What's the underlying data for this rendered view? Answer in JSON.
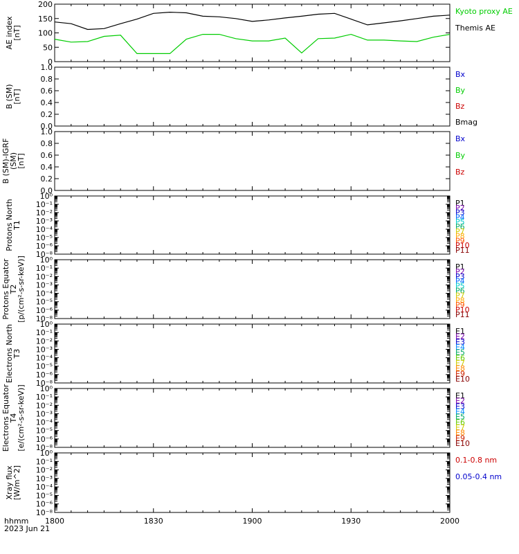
{
  "colors": {
    "black": "#000000",
    "green": "#00cc00",
    "blue": "#0000cc",
    "red": "#cc0000"
  },
  "footer": {
    "hhmm": "hhmm",
    "date": "2023 Jun 21"
  },
  "x_axis": {
    "ticks": [
      "1800",
      "1830",
      "1900",
      "1930",
      "2000"
    ]
  },
  "chart_data": [
    {
      "type": "line",
      "ylabel": "AE index [nT]",
      "ylim": [
        0,
        200
      ],
      "yticks": [
        "0",
        "50",
        "100",
        "150",
        "200"
      ],
      "legend": [
        {
          "name": "Kyoto proxy AE",
          "color": "#00cc00"
        },
        {
          "name": "Themis AE",
          "color": "#000000"
        }
      ],
      "series": [
        {
          "name": "Themis AE",
          "color": "#000000",
          "x": [
            0,
            5,
            10,
            15,
            20,
            25,
            30,
            35,
            40,
            45,
            50,
            55,
            60,
            65,
            70,
            75,
            80,
            85,
            90,
            95,
            100,
            105,
            110,
            115,
            120
          ],
          "y": [
            138,
            132,
            112,
            115,
            132,
            148,
            168,
            172,
            170,
            158,
            156,
            150,
            140,
            145,
            152,
            158,
            165,
            168,
            148,
            128,
            135,
            142,
            150,
            158,
            162
          ]
        },
        {
          "name": "Kyoto proxy AE",
          "color": "#00cc00",
          "x": [
            0,
            5,
            10,
            15,
            20,
            25,
            30,
            35,
            40,
            45,
            50,
            55,
            60,
            65,
            70,
            75,
            80,
            85,
            90,
            95,
            100,
            105,
            110,
            115,
            120
          ],
          "y": [
            78,
            68,
            70,
            88,
            92,
            28,
            28,
            28,
            78,
            95,
            95,
            80,
            72,
            72,
            82,
            30,
            80,
            82,
            95,
            75,
            75,
            72,
            70,
            85,
            95
          ]
        }
      ]
    },
    {
      "type": "line",
      "ylabel": "B (SM) [nT]",
      "ylim": [
        0,
        1
      ],
      "yticks": [
        "0.0",
        "0.2",
        "0.4",
        "0.6",
        "0.8",
        "1.0"
      ],
      "legend": [
        {
          "name": "Bx",
          "color": "#0000cc"
        },
        {
          "name": "By",
          "color": "#00cc00"
        },
        {
          "name": "Bz",
          "color": "#cc0000"
        },
        {
          "name": "Bmag",
          "color": "#000000"
        }
      ]
    },
    {
      "type": "line",
      "ylabel": "B (SM)-IGRF (SM) [nT]",
      "ylim": [
        0,
        1
      ],
      "yticks": [
        "0.0",
        "0.2",
        "0.4",
        "0.6",
        "0.8",
        "1.0"
      ],
      "legend": [
        {
          "name": "Bx",
          "color": "#0000cc"
        },
        {
          "name": "By",
          "color": "#00cc00"
        },
        {
          "name": "Bz",
          "color": "#cc0000"
        }
      ]
    },
    {
      "type": "line",
      "ylabel": "Protons North T1",
      "yscale": "log",
      "yticks": [
        "10⁰",
        "10⁻¹",
        "10⁻²",
        "10⁻³",
        "10⁻⁴",
        "10⁻⁵",
        "10⁻⁶",
        "10⁻⁸"
      ],
      "legend": [
        {
          "name": "P1",
          "color": "#000000"
        },
        {
          "name": "P2",
          "color": "#7700aa"
        },
        {
          "name": "P3",
          "color": "#0000cc"
        },
        {
          "name": "P4",
          "color": "#0066ff"
        },
        {
          "name": "P5",
          "color": "#00cccc"
        },
        {
          "name": "P6",
          "color": "#00aa66"
        },
        {
          "name": "P7",
          "color": "#cccc00"
        },
        {
          "name": "P8",
          "color": "#ffaa00"
        },
        {
          "name": "P9",
          "color": "#ff5500"
        },
        {
          "name": "P10",
          "color": "#cc0000"
        },
        {
          "name": "P11",
          "color": "#880000"
        }
      ]
    },
    {
      "type": "line",
      "ylabel": "Protons Equator T2 [p/(cm²-s-sr-keV)]",
      "yscale": "log",
      "yticks": [
        "10⁰",
        "10⁻¹",
        "10⁻²",
        "10⁻³",
        "10⁻⁴",
        "10⁻⁵",
        "10⁻⁶",
        "10⁻⁸"
      ],
      "legend": [
        {
          "name": "P1",
          "color": "#000000"
        },
        {
          "name": "P2",
          "color": "#7700aa"
        },
        {
          "name": "P3",
          "color": "#0000cc"
        },
        {
          "name": "P4",
          "color": "#0066ff"
        },
        {
          "name": "P5",
          "color": "#00cccc"
        },
        {
          "name": "P6",
          "color": "#00aa66"
        },
        {
          "name": "P7",
          "color": "#cccc00"
        },
        {
          "name": "P8",
          "color": "#ffaa00"
        },
        {
          "name": "P9",
          "color": "#ff5500"
        },
        {
          "name": "P10",
          "color": "#cc0000"
        },
        {
          "name": "P11",
          "color": "#880000"
        }
      ]
    },
    {
      "type": "line",
      "ylabel": "Electrons North T3",
      "yscale": "log",
      "yticks": [
        "10⁰",
        "10⁻¹",
        "10⁻²",
        "10⁻³",
        "10⁻⁴",
        "10⁻⁵",
        "10⁻⁶",
        "10⁻⁸"
      ],
      "legend": [
        {
          "name": "E1",
          "color": "#000000"
        },
        {
          "name": "E2",
          "color": "#7700aa"
        },
        {
          "name": "E3",
          "color": "#0000cc"
        },
        {
          "name": "E4",
          "color": "#0088ff"
        },
        {
          "name": "E5",
          "color": "#00aa66"
        },
        {
          "name": "E6",
          "color": "#66cc00"
        },
        {
          "name": "E7",
          "color": "#cccc00"
        },
        {
          "name": "E8",
          "color": "#ff8800"
        },
        {
          "name": "E9",
          "color": "#cc2200"
        },
        {
          "name": "E10",
          "color": "#880000"
        }
      ]
    },
    {
      "type": "line",
      "ylabel": "Electrons Equator T4 [e/(cm²-s-sr-keV)]",
      "yscale": "log",
      "yticks": [
        "10⁰",
        "10⁻¹",
        "10⁻²",
        "10⁻³",
        "10⁻⁴",
        "10⁻⁵",
        "10⁻⁶",
        "10⁻⁸"
      ],
      "legend": [
        {
          "name": "E1",
          "color": "#000000"
        },
        {
          "name": "E2",
          "color": "#7700aa"
        },
        {
          "name": "E3",
          "color": "#0000cc"
        },
        {
          "name": "E4",
          "color": "#0088ff"
        },
        {
          "name": "E5",
          "color": "#00aa66"
        },
        {
          "name": "E6",
          "color": "#66cc00"
        },
        {
          "name": "E7",
          "color": "#cccc00"
        },
        {
          "name": "E8",
          "color": "#ff8800"
        },
        {
          "name": "E9",
          "color": "#cc2200"
        },
        {
          "name": "E10",
          "color": "#880000"
        }
      ]
    },
    {
      "type": "line",
      "ylabel": "Xray flux [W/m^2]",
      "yscale": "log",
      "yticks": [
        "10⁰",
        "10⁻¹",
        "10⁻²",
        "10⁻³",
        "10⁻⁴",
        "10⁻⁵",
        "10⁻⁶",
        "10⁻⁸"
      ],
      "legend": [
        {
          "name": "0.1-0.8 nm",
          "color": "#cc0000"
        },
        {
          "name": "0.05-0.4 nm",
          "color": "#0000cc"
        }
      ]
    }
  ]
}
